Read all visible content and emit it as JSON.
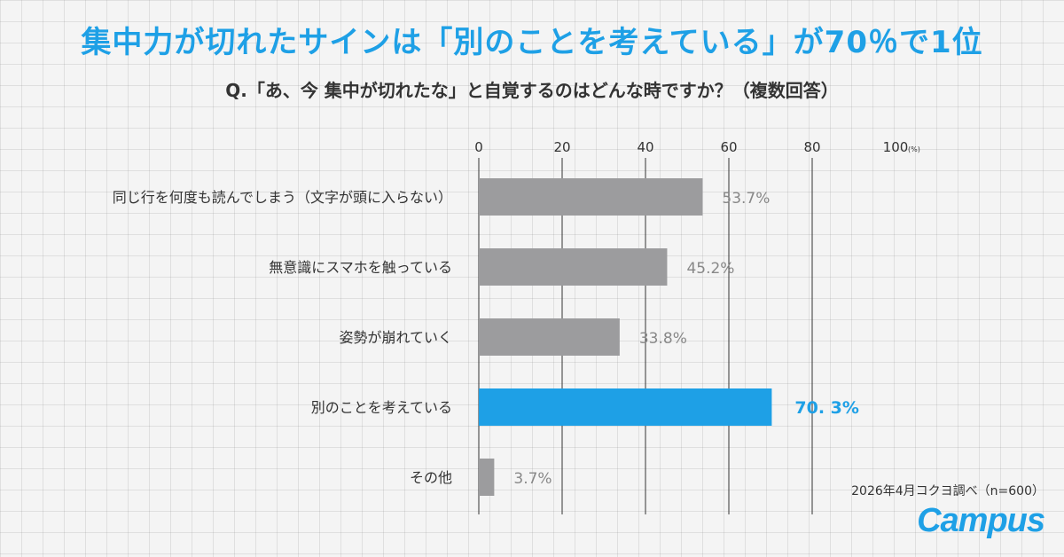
{
  "title": "集中力が切れたサインは「別のことを考えている」が70％で1位",
  "subtitle": "Q.「あ、今 集中が切れたな」と自覚するのはどんな時ですか？（複数回答）",
  "source": "2026年4月コクヨ調べ（n=600）",
  "logo": "Campus",
  "colors": {
    "accent": "#1ea0e6",
    "bar": "#9c9c9e",
    "text": "#333333",
    "value": "#888888"
  },
  "chart_data": {
    "type": "bar",
    "orientation": "horizontal",
    "categories": [
      "同じ行を何度も読んでしまう（文字が頭に入らない）",
      "無意識にスマホを触っている",
      "姿勢が崩れていく",
      "別のことを考えている",
      "その他"
    ],
    "values": [
      53.7,
      45.2,
      33.8,
      70.3,
      3.7
    ],
    "value_labels": [
      "53.7%",
      "45.2%",
      "33.8%",
      "70. 3%",
      "3.7%"
    ],
    "highlight_index": 3,
    "xlim": [
      0,
      100
    ],
    "ticks": [
      0,
      20,
      40,
      60,
      80,
      100
    ],
    "tick_labels": [
      "0",
      "20",
      "40",
      "60",
      "80",
      "100"
    ],
    "unit_label": "(%)",
    "grid": true
  }
}
